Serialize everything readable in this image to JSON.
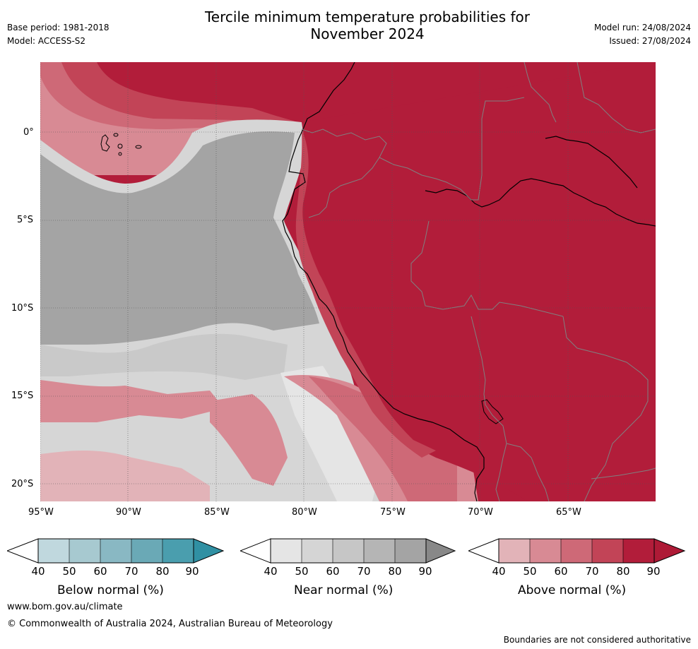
{
  "header": {
    "title_line1": "Tercile minimum temperature probabilities for",
    "title_line2": "November 2024",
    "base_period": "Base period: 1981-2018",
    "model": "Model: ACCESS-S2",
    "model_run": "Model run: 24/08/2024",
    "issued": "Issued: 27/08/2024"
  },
  "map": {
    "lat_labels": [
      "0°",
      "5°S",
      "10°S",
      "15°S",
      "20°S"
    ],
    "lon_labels": [
      "95°W",
      "90°W",
      "85°W",
      "80°W",
      "75°W",
      "70°W",
      "65°W"
    ],
    "colors": {
      "above_90": "#b21d3a",
      "above_80": "#c24457",
      "above_70": "#ce6977",
      "above_60": "#d88a94",
      "above_50": "#e2b3b8",
      "near_80": "#a4a4a4",
      "near_60": "#c9c9c9",
      "near_50": "#d6d6d6",
      "near_40": "#e5e5e5"
    }
  },
  "colorbars": [
    {
      "label": "Below normal (%)",
      "ticks": [
        "40",
        "50",
        "60",
        "70",
        "80",
        "90"
      ],
      "colors": [
        "#c0d8de",
        "#a7c9d0",
        "#89b8c3",
        "#6aa9b6",
        "#4a9eae",
        "#3090a3"
      ]
    },
    {
      "label": "Near normal (%)",
      "ticks": [
        "40",
        "50",
        "60",
        "70",
        "80",
        "90"
      ],
      "colors": [
        "#e5e5e5",
        "#d5d5d5",
        "#c6c6c6",
        "#b5b5b5",
        "#a4a4a4",
        "#888888"
      ]
    },
    {
      "label": "Above normal (%)",
      "ticks": [
        "40",
        "50",
        "60",
        "70",
        "80",
        "90"
      ],
      "colors": [
        "#e2b3b8",
        "#d88a94",
        "#ce6977",
        "#c24457",
        "#b21d3a",
        "#ae1a36"
      ]
    }
  ],
  "footer": {
    "website": "www.bom.gov.au/climate",
    "copyright": "© Commonwealth of Australia 2024, Australian Bureau of Meteorology",
    "disclaimer": "Boundaries are not considered authoritative"
  }
}
